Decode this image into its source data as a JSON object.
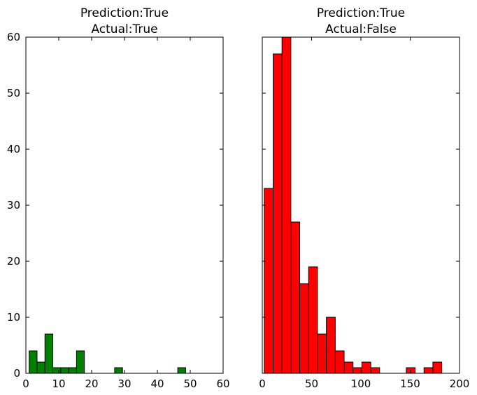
{
  "chart_data": [
    {
      "type": "bar",
      "title_line1": "Prediction:True",
      "title_line2": "Actual:True",
      "color": "#008000",
      "xlim": [
        0,
        60
      ],
      "ylim": [
        0,
        60
      ],
      "xticks": [
        0,
        10,
        20,
        30,
        40,
        50,
        60
      ],
      "yticks": [
        0,
        10,
        20,
        30,
        40,
        50,
        60
      ],
      "show_ytick_labels": true,
      "bins": [
        {
          "x0": 1.0,
          "x1": 3.4,
          "count": 4
        },
        {
          "x0": 3.4,
          "x1": 5.8,
          "count": 2
        },
        {
          "x0": 5.8,
          "x1": 8.2,
          "count": 7
        },
        {
          "x0": 8.2,
          "x1": 10.6,
          "count": 1
        },
        {
          "x0": 10.6,
          "x1": 13.0,
          "count": 1
        },
        {
          "x0": 13.0,
          "x1": 15.4,
          "count": 1
        },
        {
          "x0": 15.4,
          "x1": 17.8,
          "count": 4
        },
        {
          "x0": 27.0,
          "x1": 29.4,
          "count": 1
        },
        {
          "x0": 46.2,
          "x1": 48.6,
          "count": 1
        }
      ]
    },
    {
      "type": "bar",
      "title_line1": "Prediction:True",
      "title_line2": "Actual:False",
      "color": "#ff0000",
      "xlim": [
        0,
        200
      ],
      "ylim": [
        0,
        60
      ],
      "xticks": [
        0,
        50,
        100,
        150,
        200
      ],
      "yticks": [
        0,
        10,
        20,
        30,
        40,
        50,
        60
      ],
      "show_ytick_labels": false,
      "bins": [
        {
          "x0": 2,
          "x1": 11,
          "count": 33
        },
        {
          "x0": 11,
          "x1": 20,
          "count": 57
        },
        {
          "x0": 20,
          "x1": 29,
          "count": 60
        },
        {
          "x0": 29,
          "x1": 38,
          "count": 27
        },
        {
          "x0": 38,
          "x1": 47,
          "count": 16
        },
        {
          "x0": 47,
          "x1": 56,
          "count": 19
        },
        {
          "x0": 56,
          "x1": 65,
          "count": 7
        },
        {
          "x0": 65,
          "x1": 74,
          "count": 10
        },
        {
          "x0": 74,
          "x1": 83,
          "count": 4
        },
        {
          "x0": 83,
          "x1": 92,
          "count": 2
        },
        {
          "x0": 92,
          "x1": 101,
          "count": 1
        },
        {
          "x0": 101,
          "x1": 110,
          "count": 2
        },
        {
          "x0": 110,
          "x1": 119,
          "count": 1
        },
        {
          "x0": 146,
          "x1": 155,
          "count": 1
        },
        {
          "x0": 164,
          "x1": 173,
          "count": 1
        },
        {
          "x0": 173,
          "x1": 182,
          "count": 2
        }
      ]
    }
  ]
}
